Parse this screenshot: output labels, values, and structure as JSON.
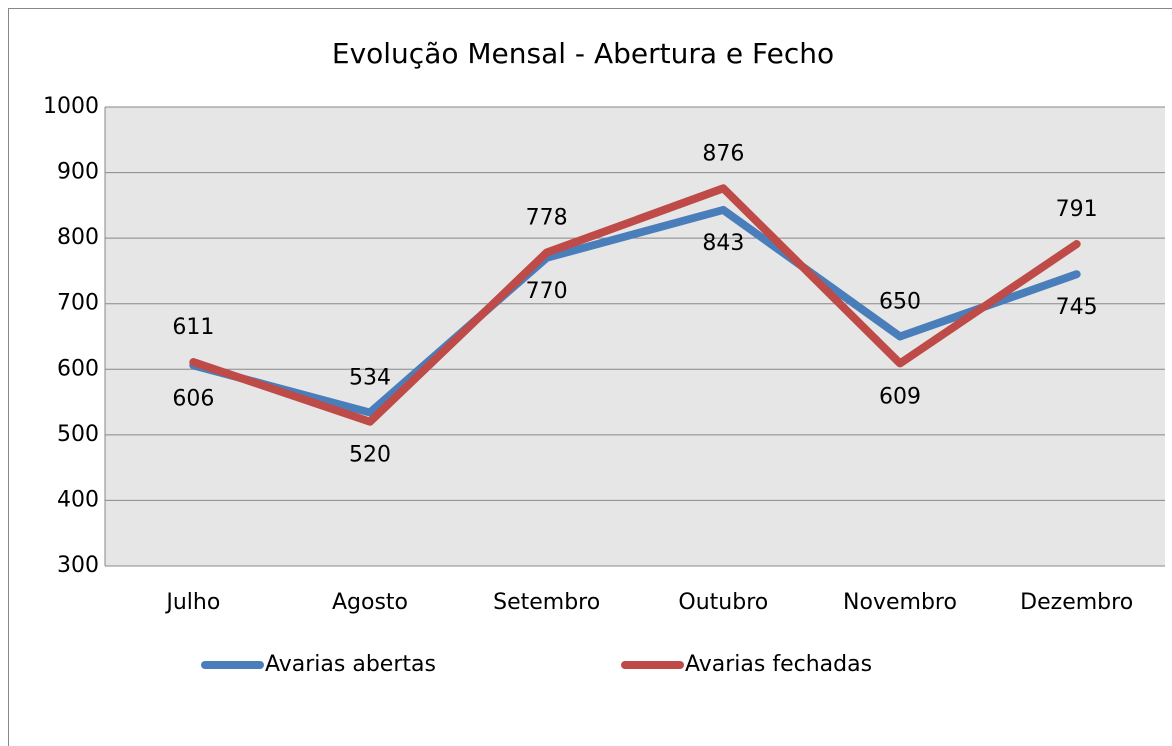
{
  "chart_data": {
    "type": "line",
    "title": "Evolução Mensal - Abertura e Fecho",
    "categories": [
      "Julho",
      "Agosto",
      "Setembro",
      "Outubro",
      "Novembro",
      "Dezembro"
    ],
    "series": [
      {
        "name": "Avarias abertas",
        "color": "#4a7ebb",
        "values": [
          606,
          534,
          770,
          843,
          650,
          745
        ]
      },
      {
        "name": "Avarias fechadas",
        "color": "#be4b48",
        "values": [
          611,
          520,
          778,
          876,
          609,
          791
        ]
      }
    ],
    "ylim": [
      300,
      1000
    ],
    "yticks": [
      300,
      400,
      500,
      600,
      700,
      800,
      900,
      1000
    ],
    "grid": true,
    "legend": "bottom"
  }
}
